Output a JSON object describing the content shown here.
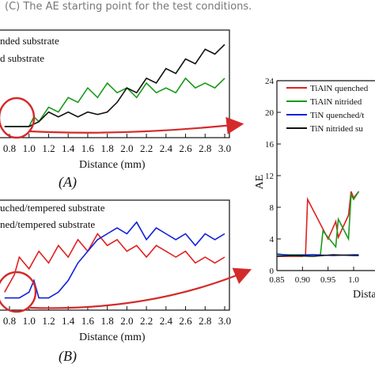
{
  "caption": "(C) The AE starting point for the test conditions.",
  "colors": {
    "red": "#e02020",
    "green": "#1a9a1a",
    "blue": "#1020d8",
    "black": "#111111",
    "arrow": "#d42a2a"
  },
  "panel_a": {
    "label": "(A)",
    "legend": [
      "nded substrate",
      "d substrate"
    ]
  },
  "panel_b": {
    "label": "(B)",
    "legend": [
      "uched/tempered substrate",
      "ned/tempered substrate"
    ]
  },
  "panel_c": {
    "legend": [
      "TiAlN quenched",
      "TiAlN nitrided",
      "TiN quenched/t",
      "TiN nitrided su"
    ]
  },
  "chart_data": [
    {
      "type": "line",
      "xlabel": "Distance (mm)",
      "x_ticks": [
        "0.8",
        "1.0",
        "1.2",
        "1.4",
        "1.6",
        "1.8",
        "2.0",
        "2.2",
        "2.4",
        "2.6",
        "2.8",
        "3.0"
      ],
      "xlim": [
        0.75,
        3.05
      ],
      "series": [
        {
          "color": "green",
          "x": [
            0.75,
            0.9,
            1.0,
            1.05,
            1.1,
            1.2,
            1.3,
            1.4,
            1.5,
            1.6,
            1.7,
            1.8,
            1.9,
            2.0,
            2.1,
            2.2,
            2.3,
            2.4,
            2.5,
            2.6,
            2.7,
            2.8,
            2.9,
            3.0
          ],
          "values": [
            1,
            1,
            1,
            3,
            2,
            5,
            4,
            7,
            6,
            9,
            7,
            10,
            8,
            9,
            7,
            10,
            8,
            9,
            8,
            11,
            9,
            10,
            9,
            11
          ]
        },
        {
          "color": "black",
          "x": [
            0.75,
            0.9,
            1.0,
            1.05,
            1.1,
            1.2,
            1.3,
            1.4,
            1.5,
            1.6,
            1.7,
            1.8,
            1.9,
            2.0,
            2.1,
            2.2,
            2.3,
            2.4,
            2.5,
            2.6,
            2.7,
            2.8,
            2.9,
            3.0
          ],
          "values": [
            1,
            1,
            1,
            1.5,
            2,
            4,
            3,
            4,
            3,
            4,
            3.5,
            4,
            6,
            9,
            8,
            11,
            10,
            13,
            12,
            15,
            14,
            17,
            16,
            18
          ]
        }
      ]
    },
    {
      "type": "line",
      "xlabel": "Distance (mm)",
      "x_ticks": [
        "0.8",
        "1.0",
        "1.2",
        "1.4",
        "1.6",
        "1.8",
        "2.0",
        "2.2",
        "2.4",
        "2.6",
        "2.8",
        "3.0"
      ],
      "xlim": [
        0.75,
        3.05
      ],
      "series": [
        {
          "color": "red",
          "x": [
            0.75,
            0.85,
            0.9,
            1.0,
            1.1,
            1.2,
            1.3,
            1.4,
            1.5,
            1.6,
            1.7,
            1.8,
            1.9,
            2.0,
            2.1,
            2.2,
            2.3,
            2.4,
            2.5,
            2.6,
            2.7,
            2.8,
            2.9,
            3.0
          ],
          "values": [
            2,
            5,
            8,
            6,
            9,
            7,
            10,
            8,
            11,
            9,
            12,
            10,
            11,
            9,
            10,
            8,
            10,
            9,
            8,
            9,
            7,
            8,
            7,
            8
          ]
        },
        {
          "color": "blue",
          "x": [
            0.75,
            0.9,
            1.0,
            1.05,
            1.1,
            1.2,
            1.3,
            1.4,
            1.5,
            1.6,
            1.7,
            1.8,
            1.9,
            2.0,
            2.1,
            2.2,
            2.3,
            2.4,
            2.5,
            2.6,
            2.7,
            2.8,
            2.9,
            3.0
          ],
          "values": [
            1,
            1,
            2,
            4,
            1,
            1,
            2,
            4,
            7,
            9,
            11,
            12,
            13,
            12,
            14,
            11,
            13,
            12,
            11,
            12,
            10,
            12,
            11,
            12
          ]
        }
      ]
    },
    {
      "type": "line",
      "xlabel": "Dista",
      "ylabel": "AE",
      "x_ticks": [
        "0.85",
        "0.90",
        "0.95",
        "1.0"
      ],
      "y_ticks": [
        "0",
        "4",
        "8",
        "12",
        "16",
        "20",
        "24"
      ],
      "ylim": [
        0,
        24
      ],
      "series": [
        {
          "color": "red",
          "x": [
            0.85,
            0.9,
            0.906,
            0.91,
            0.95,
            0.965,
            0.97,
            0.99,
            0.995,
            1.0,
            1.01
          ],
          "values": [
            1.8,
            1.8,
            2.0,
            9.0,
            4.0,
            6.2,
            4.2,
            7.0,
            10.0,
            9.2,
            10.0
          ]
        },
        {
          "color": "green",
          "x": [
            0.85,
            0.93,
            0.935,
            0.94,
            0.965,
            0.97,
            0.99,
            0.995,
            1.0,
            1.01
          ],
          "values": [
            2.0,
            2.0,
            2.0,
            5.0,
            3.0,
            6.5,
            4.0,
            9.6,
            9.0,
            10.0
          ]
        },
        {
          "color": "blue",
          "x": [
            0.85,
            0.88,
            0.92,
            0.96,
            1.0,
            1.01
          ],
          "values": [
            2.1,
            1.9,
            2.0,
            1.9,
            2.0,
            2.0
          ]
        },
        {
          "color": "black",
          "x": [
            0.85,
            0.88,
            0.92,
            0.96,
            1.0,
            1.01
          ],
          "values": [
            1.8,
            1.9,
            1.8,
            2.0,
            1.9,
            1.9
          ]
        }
      ]
    }
  ]
}
